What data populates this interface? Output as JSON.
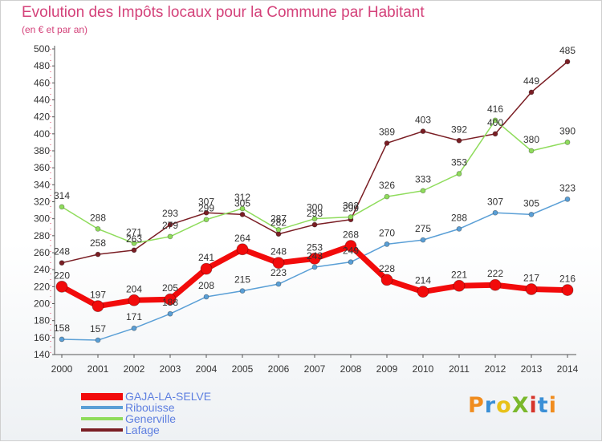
{
  "header": {
    "title": "Evolution des Impôts locaux pour la Commune par Habitant",
    "subtitle": "(en € et par an)"
  },
  "logo": {
    "text": "ProXiti",
    "colors": [
      "#f08c1e",
      "#3a8fd6",
      "#e8c21a",
      "#7ab82c",
      "#d6342a",
      "#3a8fd6",
      "#f08c1e"
    ]
  },
  "chart_data": {
    "type": "line",
    "categories": [
      "2000",
      "2001",
      "2002",
      "2003",
      "2004",
      "2005",
      "2006",
      "2007",
      "2008",
      "2009",
      "2010",
      "2011",
      "2012",
      "2013",
      "2014"
    ],
    "ylim": [
      140,
      500
    ],
    "yticks": [
      140,
      160,
      180,
      200,
      220,
      240,
      260,
      280,
      300,
      320,
      340,
      360,
      380,
      400,
      420,
      440,
      460,
      480,
      500
    ],
    "grid": false,
    "legend_position": "bottom-left",
    "series": [
      {
        "name": "Lafage",
        "color": "#7a1e24",
        "lineWidth": 1.5,
        "marker": 3,
        "values": [
          248,
          258,
          263,
          293,
          307,
          305,
          282,
          293,
          299,
          389,
          403,
          392,
          400,
          449,
          485
        ],
        "labels": [
          "248",
          "258",
          "263",
          "293",
          "307",
          "305",
          "282",
          "293",
          "299",
          "389",
          "403",
          "392",
          "400",
          "449",
          "485"
        ]
      },
      {
        "name": "Generville",
        "color": "#8fdc5c",
        "lineWidth": 1.5,
        "marker": 3,
        "values": [
          314,
          288,
          271,
          279,
          299,
          312,
          287,
          300,
          302,
          326,
          333,
          353,
          416,
          380,
          390
        ],
        "labels": [
          "314",
          "288",
          "271",
          "279",
          "299",
          "312",
          "287",
          "300",
          "302",
          "326",
          "333",
          "353",
          "416",
          "380",
          "390"
        ]
      },
      {
        "name": "Ribouisse",
        "color": "#5a9fd6",
        "lineWidth": 1.5,
        "marker": 3,
        "values": [
          158,
          157,
          171,
          188,
          208,
          215,
          223,
          243,
          249,
          270,
          275,
          288,
          307,
          305,
          323
        ],
        "labels": [
          "158",
          "157",
          "171",
          "188",
          "208",
          "215",
          "223",
          "243",
          "249",
          "270",
          "275",
          "288",
          "307",
          "305",
          "323"
        ]
      },
      {
        "name": "GAJA-LA-SELVE",
        "color": "#f20b0b",
        "lineWidth": 7,
        "marker": 7,
        "values": [
          220,
          197,
          204,
          205,
          241,
          264,
          248,
          253,
          268,
          228,
          214,
          221,
          222,
          217,
          216
        ],
        "labels": [
          "220",
          "197",
          "204",
          "205",
          "241",
          "264",
          "248",
          "253",
          "268",
          "228",
          "214",
          "221",
          "222",
          "217",
          "216"
        ]
      }
    ],
    "legend_order": [
      "GAJA-LA-SELVE",
      "Ribouisse",
      "Generville",
      "Lafage"
    ]
  }
}
